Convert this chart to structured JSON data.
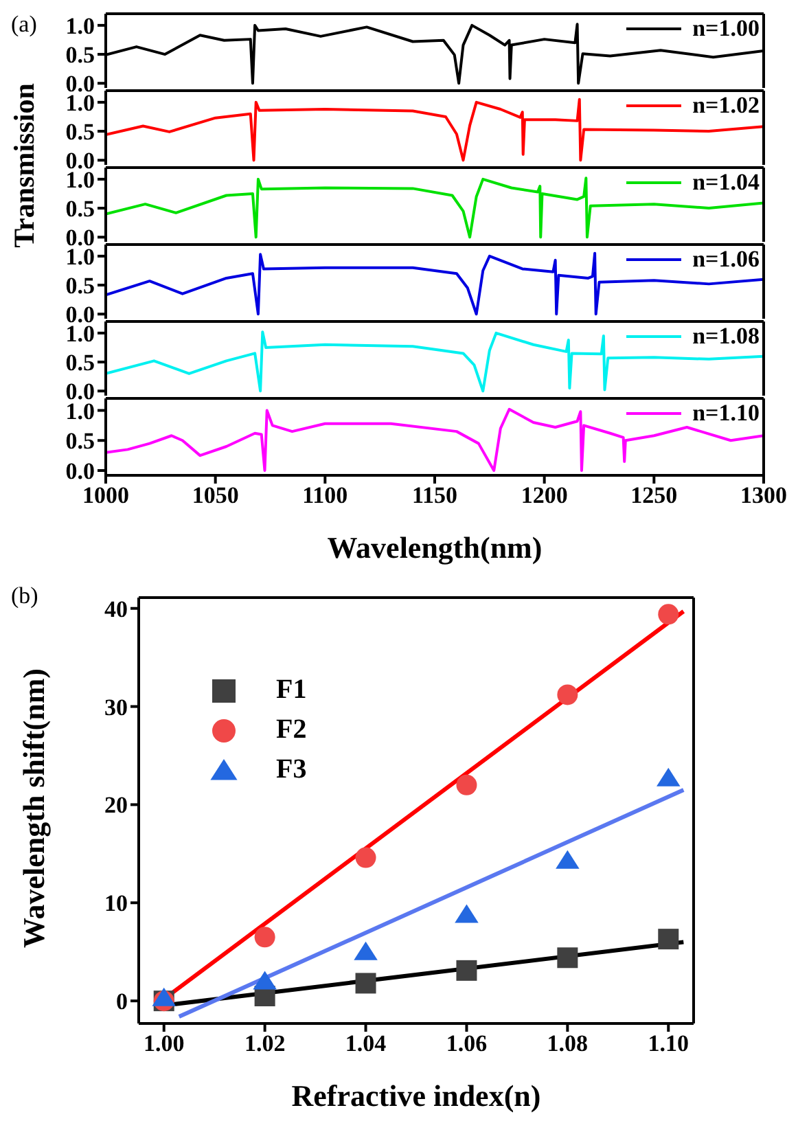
{
  "chart_data": [
    {
      "type": "line",
      "annotations": [
        "(a)"
      ],
      "xlim": [
        1000,
        1300
      ],
      "xticks": [
        1000,
        1050,
        1100,
        1150,
        1200,
        1250,
        1300
      ],
      "ylim": [
        -0.08,
        1.2
      ],
      "yticks": [
        {
          "value": 0,
          "label": "0.0"
        },
        {
          "value": 0.5,
          "label": "0.5"
        },
        {
          "value": 1,
          "label": "1.0"
        }
      ],
      "tick_labels": "y",
      "grid": false,
      "legend": "top right",
      "line_style": "solid",
      "marker": "none",
      "series": [
        {
          "name": "n=1.00",
          "color": "#000000",
          "x": [
            1000,
            1014,
            1027,
            1043,
            1054,
            1066,
            1067,
            1068,
            1069.5,
            1082,
            1098,
            1119,
            1140,
            1154,
            1159,
            1161,
            1163,
            1167,
            1175,
            1182,
            1184,
            1184.3,
            1185,
            1200,
            1214,
            1215,
            1215.5,
            1217.5,
            1230,
            1253,
            1277,
            1300
          ],
          "values": [
            0.49,
            0.63,
            0.5,
            0.83,
            0.74,
            0.76,
            0,
            1,
            0.91,
            0.94,
            0.81,
            0.97,
            0.72,
            0.74,
            0.49,
            0,
            0.66,
            1,
            0.83,
            0.66,
            0.74,
            0.08,
            0.66,
            0.76,
            0.7,
            1.02,
            0,
            0.51,
            0.47,
            0.57,
            0.45,
            0.56
          ]
        }
      ]
    },
    {
      "type": "line",
      "xlim": [
        1000,
        1300
      ],
      "xticks": [
        1000,
        1050,
        1100,
        1150,
        1200,
        1250,
        1300
      ],
      "ylim": [
        -0.08,
        1.2
      ],
      "yticks": [
        {
          "value": 0,
          "label": "0.0"
        },
        {
          "value": 0.5,
          "label": "0.5"
        },
        {
          "value": 1,
          "label": "1.0"
        }
      ],
      "tick_labels": "y",
      "grid": false,
      "legend": "top right",
      "line_style": "solid",
      "marker": "none",
      "series": [
        {
          "name": "n=1.02",
          "color": "#ff0000",
          "x": [
            1000,
            1017,
            1029,
            1050,
            1066,
            1067.5,
            1068.5,
            1070,
            1100,
            1140,
            1155,
            1160,
            1163,
            1166,
            1169,
            1180,
            1189,
            1190,
            1190.3,
            1191,
            1205,
            1215,
            1216,
            1216.5,
            1218,
            1250,
            1275,
            1300
          ],
          "values": [
            0.44,
            0.59,
            0.49,
            0.73,
            0.8,
            0,
            1,
            0.86,
            0.88,
            0.85,
            0.75,
            0.45,
            0,
            0.6,
            1,
            0.88,
            0.74,
            0.83,
            0.1,
            0.7,
            0.7,
            0.68,
            1.05,
            0,
            0.53,
            0.52,
            0.5,
            0.58
          ]
        }
      ]
    },
    {
      "type": "line",
      "ylabel": "Transmission",
      "xlim": [
        1000,
        1300
      ],
      "xticks": [
        1000,
        1050,
        1100,
        1150,
        1200,
        1250,
        1300
      ],
      "ylim": [
        -0.08,
        1.2
      ],
      "yticks": [
        {
          "value": 0,
          "label": "0.0"
        },
        {
          "value": 0.5,
          "label": "0.5"
        },
        {
          "value": 1,
          "label": "1.0"
        }
      ],
      "tick_labels": "y",
      "grid": false,
      "legend": "top right",
      "line_style": "solid",
      "marker": "none",
      "series": [
        {
          "name": "n=1.04",
          "color": "#00e000",
          "x": [
            1000,
            1018,
            1032,
            1055,
            1067,
            1068.5,
            1069.5,
            1071,
            1100,
            1140,
            1158,
            1163,
            1166,
            1169,
            1172,
            1185,
            1197,
            1198,
            1198.3,
            1199,
            1215,
            1218,
            1219,
            1219.5,
            1221,
            1250,
            1275,
            1300
          ],
          "values": [
            0.4,
            0.57,
            0.42,
            0.72,
            0.75,
            0,
            1,
            0.83,
            0.85,
            0.84,
            0.72,
            0.45,
            0,
            0.7,
            1,
            0.85,
            0.78,
            0.88,
            0,
            0.75,
            0.65,
            0.7,
            1.02,
            0,
            0.54,
            0.57,
            0.5,
            0.59
          ]
        }
      ]
    },
    {
      "type": "line",
      "xlim": [
        1000,
        1300
      ],
      "xticks": [
        1000,
        1050,
        1100,
        1150,
        1200,
        1250,
        1300
      ],
      "ylim": [
        -0.08,
        1.2
      ],
      "yticks": [
        {
          "value": 0,
          "label": "0.0"
        },
        {
          "value": 0.5,
          "label": "0.5"
        },
        {
          "value": 1,
          "label": "1.0"
        }
      ],
      "tick_labels": "y",
      "grid": false,
      "legend": "top right",
      "line_style": "solid",
      "marker": "none",
      "series": [
        {
          "name": "n=1.06",
          "color": "#0000e0",
          "x": [
            1000,
            1020,
            1035,
            1055,
            1067,
            1069.5,
            1070.5,
            1072,
            1100,
            1140,
            1160,
            1165,
            1169,
            1172,
            1175,
            1190,
            1204,
            1205,
            1205.5,
            1206.5,
            1220,
            1222,
            1223,
            1223.5,
            1225,
            1250,
            1275,
            1300
          ],
          "values": [
            0.33,
            0.57,
            0.35,
            0.62,
            0.7,
            0,
            1.03,
            0.78,
            0.8,
            0.8,
            0.7,
            0.45,
            0,
            0.75,
            1,
            0.78,
            0.73,
            0.93,
            0,
            0.67,
            0.62,
            0.65,
            1.05,
            0,
            0.55,
            0.58,
            0.52,
            0.6
          ]
        }
      ]
    },
    {
      "type": "line",
      "xlim": [
        1000,
        1300
      ],
      "xticks": [
        1000,
        1050,
        1100,
        1150,
        1200,
        1250,
        1300
      ],
      "ylim": [
        -0.08,
        1.2
      ],
      "yticks": [
        {
          "value": 0,
          "label": "0.0"
        },
        {
          "value": 0.5,
          "label": "0.5"
        },
        {
          "value": 1,
          "label": "1.0"
        }
      ],
      "tick_labels": "y",
      "grid": false,
      "legend": "top right",
      "line_style": "solid",
      "marker": "none",
      "series": [
        {
          "name": "n=1.08",
          "color": "#00f0f0",
          "x": [
            1000,
            1022,
            1038,
            1055,
            1068,
            1070.5,
            1071.5,
            1073,
            1100,
            1140,
            1163,
            1168,
            1172,
            1175,
            1178,
            1195,
            1210,
            1211,
            1211.5,
            1212.5,
            1226,
            1227,
            1227.5,
            1229,
            1250,
            1275,
            1300
          ],
          "values": [
            0.3,
            0.52,
            0.3,
            0.52,
            0.65,
            0,
            1.02,
            0.75,
            0.8,
            0.77,
            0.65,
            0.45,
            0,
            0.7,
            1,
            0.8,
            0.68,
            0.88,
            0.05,
            0.65,
            0.64,
            0.95,
            0.02,
            0.57,
            0.58,
            0.55,
            0.6
          ]
        }
      ]
    },
    {
      "type": "line",
      "xlabel": "Wavelength(nm)",
      "xlim": [
        1000,
        1300
      ],
      "xticks": [
        1000,
        1050,
        1100,
        1150,
        1200,
        1250,
        1300
      ],
      "ylim": [
        -0.08,
        1.2
      ],
      "yticks": [
        {
          "value": 0,
          "label": "0.0"
        },
        {
          "value": 0.5,
          "label": "0.5"
        },
        {
          "value": 1,
          "label": "1.0"
        }
      ],
      "grid": false,
      "legend": "top right",
      "line_style": "solid",
      "marker": "none",
      "series": [
        {
          "name": "n=1.10",
          "color": "#ff00ff",
          "x": [
            1000,
            1010,
            1020,
            1030,
            1035,
            1043,
            1055,
            1068,
            1071,
            1072.5,
            1073.5,
            1076,
            1085,
            1100,
            1130,
            1160,
            1170,
            1177,
            1180,
            1184,
            1195,
            1205,
            1215,
            1216.5,
            1217,
            1218,
            1230,
            1236,
            1236.5,
            1237,
            1250,
            1265,
            1285,
            1300
          ],
          "values": [
            0.3,
            0.35,
            0.45,
            0.58,
            0.5,
            0.25,
            0.4,
            0.62,
            0.6,
            0,
            1,
            0.75,
            0.65,
            0.78,
            0.78,
            0.65,
            0.45,
            0,
            0.7,
            1.02,
            0.8,
            0.72,
            0.82,
            0.98,
            0,
            0.75,
            0.62,
            0.55,
            0.15,
            0.5,
            0.58,
            0.72,
            0.5,
            0.58
          ]
        }
      ]
    },
    {
      "type": "scatter",
      "annotations": [
        "(b)"
      ],
      "xlabel": "Refractive index(n)",
      "ylabel": "Wavelength shift(nm)",
      "xlim": [
        0.995,
        1.105
      ],
      "xticks": [
        {
          "value": 1,
          "label": "1.00"
        },
        1.02,
        1.04,
        1.06,
        1.08,
        {
          "value": 1.1,
          "label": "1.10"
        }
      ],
      "ylim": [
        -2.3,
        41.1
      ],
      "yticks": [
        0,
        10,
        20,
        30,
        40
      ],
      "grid": false,
      "legend": "top left",
      "x": [
        1,
        1.02,
        1.04,
        1.06,
        1.08,
        1.1
      ],
      "series": [
        {
          "name": "F1",
          "color": "#404040",
          "marker": "square",
          "values": [
            0,
            0.5,
            1.8,
            3.1,
            4.4,
            6.3
          ]
        },
        {
          "name": "F2",
          "color": "#f04848",
          "marker": "circle",
          "values": [
            0,
            6.5,
            14.6,
            22,
            31.2,
            39.4
          ]
        },
        {
          "name": "F3",
          "color": "#2468e0",
          "marker": "triangle",
          "values": [
            0.3,
            2,
            5,
            8.8,
            14.3,
            22.7
          ]
        },
        {
          "type": "line",
          "color": "#000000",
          "marker": "none",
          "line_style": "solid",
          "x": [
            1.001,
            1.103
          ],
          "values": [
            -0.4,
            6
          ]
        },
        {
          "type": "line",
          "color": "#ff0000",
          "marker": "none",
          "line_style": "solid",
          "x": [
            1,
            1.103
          ],
          "values": [
            0.2,
            39.7
          ]
        },
        {
          "type": "line",
          "color": "#5a78f0",
          "marker": "none",
          "line_style": "solid",
          "x": [
            1.003,
            1.103
          ],
          "values": [
            -1.6,
            21.5
          ]
        }
      ]
    }
  ]
}
